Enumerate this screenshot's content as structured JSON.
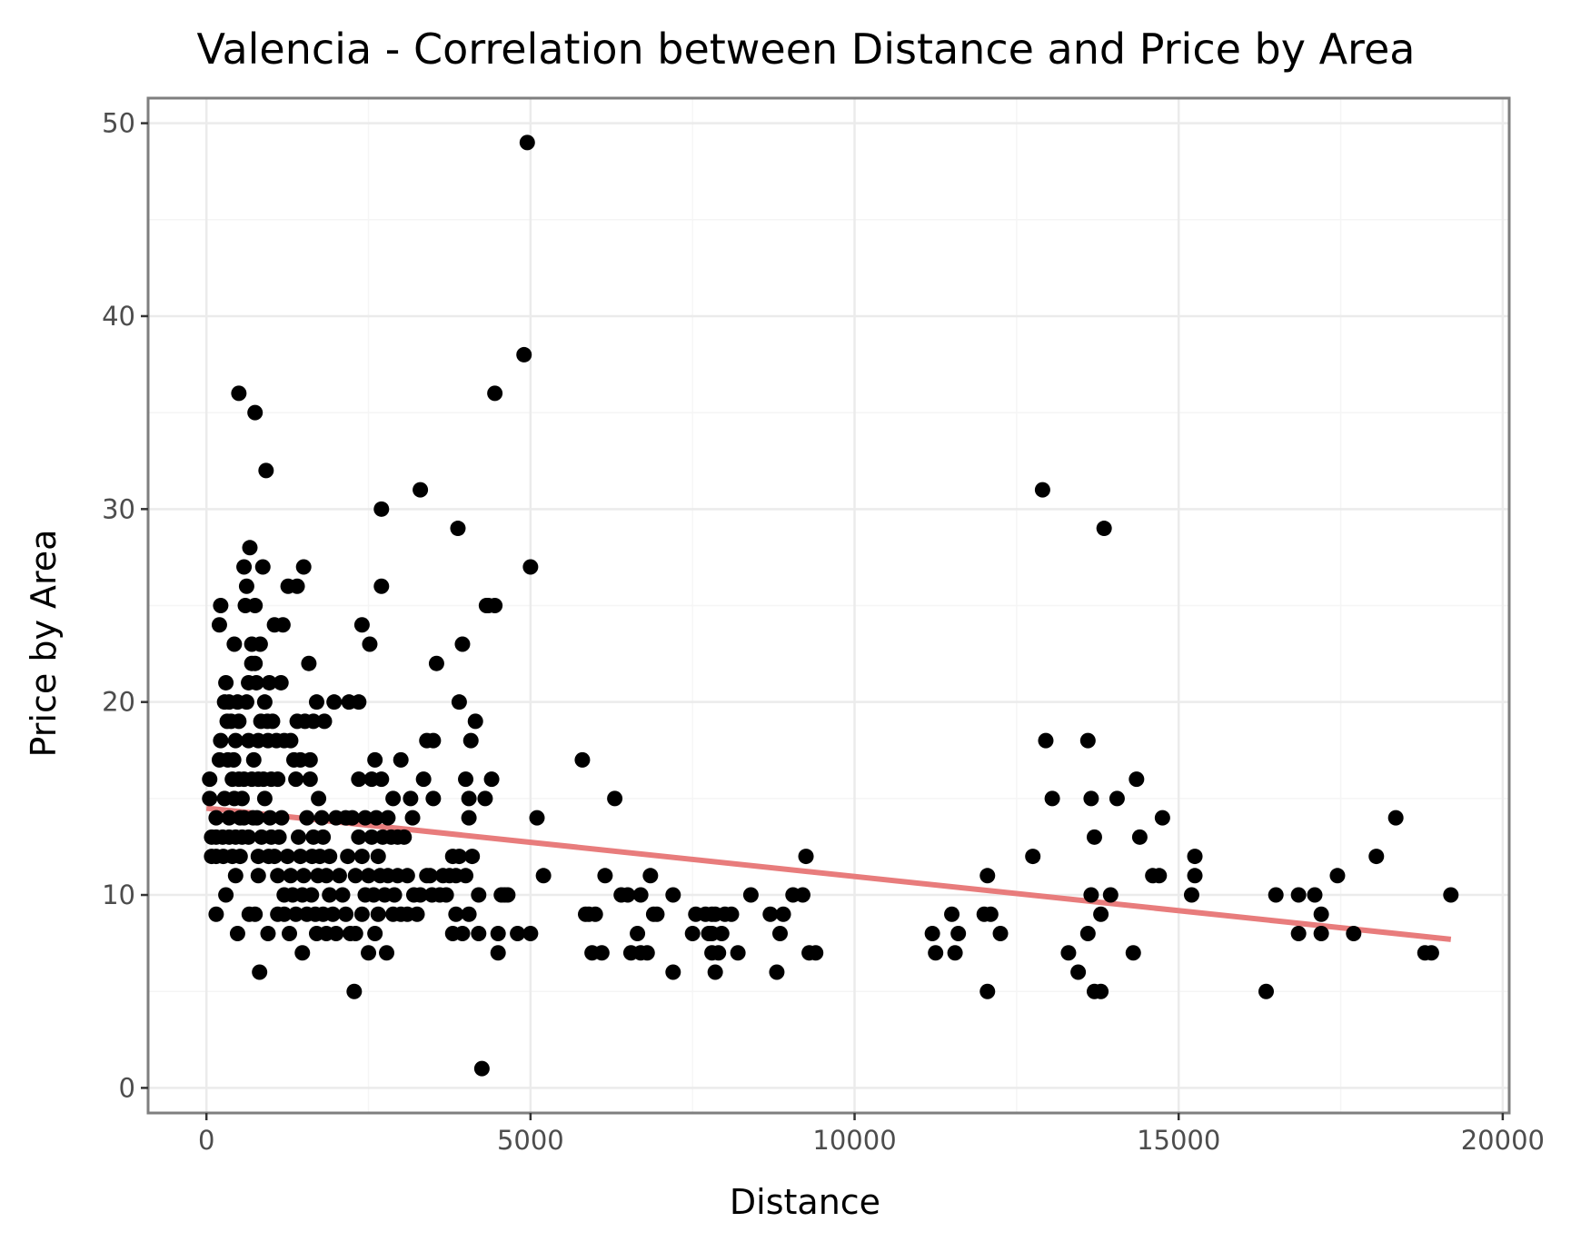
{
  "chart_data": {
    "type": "scatter",
    "title": "Valencia - Correlation between Distance and Price by Area",
    "xlabel": "Distance",
    "ylabel": "Price by Area",
    "xlim": [
      -900,
      20100
    ],
    "ylim": [
      -1.3,
      51.3
    ],
    "x_ticks": [
      0,
      5000,
      10000,
      15000,
      20000
    ],
    "x_tick_labels": [
      "0",
      "5000",
      "10000",
      "15000",
      "20000"
    ],
    "y_ticks": [
      0,
      10,
      20,
      30,
      40,
      50
    ],
    "y_tick_labels": [
      "0",
      "10",
      "20",
      "30",
      "40",
      "50"
    ],
    "grid": true,
    "legend": "none",
    "colors": {
      "points": "#000000",
      "trend": "#e87c7c",
      "grid": "#ebebeb",
      "panel_border": "#7f7f7f"
    },
    "trend_line": {
      "x": [
        0,
        19200
      ],
      "y": [
        14.5,
        7.7
      ]
    },
    "points": [
      [
        50,
        16
      ],
      [
        50,
        15
      ],
      [
        80,
        13
      ],
      [
        80,
        12
      ],
      [
        150,
        14
      ],
      [
        150,
        12
      ],
      [
        150,
        9
      ],
      [
        150,
        13
      ],
      [
        200,
        17
      ],
      [
        200,
        24
      ],
      [
        220,
        18
      ],
      [
        220,
        25
      ],
      [
        250,
        13
      ],
      [
        260,
        12
      ],
      [
        280,
        15
      ],
      [
        280,
        20
      ],
      [
        300,
        10
      ],
      [
        300,
        21
      ],
      [
        320,
        19
      ],
      [
        330,
        17
      ],
      [
        350,
        13
      ],
      [
        350,
        14
      ],
      [
        350,
        20
      ],
      [
        380,
        19
      ],
      [
        400,
        16
      ],
      [
        400,
        12
      ],
      [
        420,
        17
      ],
      [
        430,
        15
      ],
      [
        430,
        23
      ],
      [
        450,
        18
      ],
      [
        450,
        13
      ],
      [
        450,
        11
      ],
      [
        480,
        20
      ],
      [
        480,
        8
      ],
      [
        500,
        19
      ],
      [
        500,
        16
      ],
      [
        500,
        36
      ],
      [
        520,
        14
      ],
      [
        520,
        12
      ],
      [
        550,
        15
      ],
      [
        550,
        13
      ],
      [
        580,
        27
      ],
      [
        580,
        16
      ],
      [
        580,
        14
      ],
      [
        600,
        25
      ],
      [
        620,
        20
      ],
      [
        620,
        26
      ],
      [
        650,
        21
      ],
      [
        650,
        18
      ],
      [
        650,
        13
      ],
      [
        660,
        9
      ],
      [
        670,
        28
      ],
      [
        700,
        23
      ],
      [
        700,
        16
      ],
      [
        700,
        22
      ],
      [
        720,
        14
      ],
      [
        730,
        17
      ],
      [
        750,
        22
      ],
      [
        750,
        9
      ],
      [
        750,
        25
      ],
      [
        750,
        35
      ],
      [
        770,
        21
      ],
      [
        780,
        14
      ],
      [
        800,
        12
      ],
      [
        800,
        18
      ],
      [
        800,
        11
      ],
      [
        800,
        16
      ],
      [
        820,
        6
      ],
      [
        830,
        23
      ],
      [
        840,
        19
      ],
      [
        850,
        13
      ],
      [
        870,
        27
      ],
      [
        880,
        16
      ],
      [
        900,
        15
      ],
      [
        900,
        20
      ],
      [
        920,
        32
      ],
      [
        940,
        19
      ],
      [
        950,
        8
      ],
      [
        950,
        18
      ],
      [
        960,
        12
      ],
      [
        970,
        21
      ],
      [
        980,
        14
      ],
      [
        1000,
        13
      ],
      [
        1000,
        16
      ],
      [
        1020,
        19
      ],
      [
        1050,
        12
      ],
      [
        1050,
        24
      ],
      [
        1080,
        18
      ],
      [
        1100,
        11
      ],
      [
        1100,
        9
      ],
      [
        1100,
        16
      ],
      [
        1120,
        13
      ],
      [
        1150,
        21
      ],
      [
        1160,
        14
      ],
      [
        1180,
        24
      ],
      [
        1200,
        10
      ],
      [
        1200,
        18
      ],
      [
        1200,
        9
      ],
      [
        1250,
        12
      ],
      [
        1260,
        26
      ],
      [
        1280,
        8
      ],
      [
        1300,
        11
      ],
      [
        1300,
        18
      ],
      [
        1330,
        10
      ],
      [
        1350,
        17
      ],
      [
        1380,
        9
      ],
      [
        1380,
        16
      ],
      [
        1400,
        19
      ],
      [
        1400,
        26
      ],
      [
        1420,
        13
      ],
      [
        1450,
        12
      ],
      [
        1450,
        17
      ],
      [
        1480,
        10
      ],
      [
        1480,
        7
      ],
      [
        1500,
        27
      ],
      [
        1500,
        11
      ],
      [
        1520,
        19
      ],
      [
        1550,
        9
      ],
      [
        1550,
        14
      ],
      [
        1580,
        22
      ],
      [
        1600,
        17
      ],
      [
        1600,
        16
      ],
      [
        1620,
        10
      ],
      [
        1630,
        12
      ],
      [
        1650,
        13
      ],
      [
        1650,
        19
      ],
      [
        1680,
        9
      ],
      [
        1700,
        8
      ],
      [
        1700,
        20
      ],
      [
        1720,
        11
      ],
      [
        1730,
        15
      ],
      [
        1750,
        12
      ],
      [
        1780,
        14
      ],
      [
        1800,
        13
      ],
      [
        1800,
        9
      ],
      [
        1820,
        19
      ],
      [
        1850,
        11
      ],
      [
        1850,
        8
      ],
      [
        1900,
        10
      ],
      [
        1900,
        12
      ],
      [
        1950,
        9
      ],
      [
        1970,
        20
      ],
      [
        2000,
        8
      ],
      [
        2000,
        14
      ],
      [
        2050,
        11
      ],
      [
        2100,
        10
      ],
      [
        2150,
        9
      ],
      [
        2150,
        14
      ],
      [
        2180,
        12
      ],
      [
        2200,
        20
      ],
      [
        2220,
        8
      ],
      [
        2250,
        14
      ],
      [
        2280,
        5
      ],
      [
        2300,
        11
      ],
      [
        2300,
        8
      ],
      [
        2350,
        13
      ],
      [
        2350,
        20
      ],
      [
        2350,
        16
      ],
      [
        2400,
        24
      ],
      [
        2400,
        12
      ],
      [
        2400,
        9
      ],
      [
        2450,
        10
      ],
      [
        2450,
        14
      ],
      [
        2500,
        11
      ],
      [
        2500,
        7
      ],
      [
        2520,
        23
      ],
      [
        2550,
        13
      ],
      [
        2550,
        16
      ],
      [
        2580,
        10
      ],
      [
        2600,
        17
      ],
      [
        2600,
        8
      ],
      [
        2620,
        14
      ],
      [
        2650,
        12
      ],
      [
        2650,
        9
      ],
      [
        2680,
        11
      ],
      [
        2700,
        26
      ],
      [
        2700,
        30
      ],
      [
        2700,
        16
      ],
      [
        2720,
        13
      ],
      [
        2750,
        10
      ],
      [
        2780,
        7
      ],
      [
        2800,
        14
      ],
      [
        2800,
        11
      ],
      [
        2850,
        13
      ],
      [
        2880,
        9
      ],
      [
        2880,
        15
      ],
      [
        2900,
        10
      ],
      [
        2950,
        11
      ],
      [
        2950,
        13
      ],
      [
        3000,
        17
      ],
      [
        3000,
        9
      ],
      [
        3050,
        13
      ],
      [
        3100,
        11
      ],
      [
        3100,
        9
      ],
      [
        3150,
        15
      ],
      [
        3180,
        14
      ],
      [
        3200,
        10
      ],
      [
        3250,
        9
      ],
      [
        3300,
        10
      ],
      [
        3300,
        31
      ],
      [
        3350,
        16
      ],
      [
        3400,
        11
      ],
      [
        3400,
        18
      ],
      [
        3450,
        11
      ],
      [
        3480,
        10
      ],
      [
        3500,
        18
      ],
      [
        3500,
        15
      ],
      [
        3550,
        22
      ],
      [
        3600,
        10
      ],
      [
        3650,
        11
      ],
      [
        3700,
        10
      ],
      [
        3750,
        11
      ],
      [
        3800,
        8
      ],
      [
        3800,
        12
      ],
      [
        3850,
        9
      ],
      [
        3850,
        11
      ],
      [
        3880,
        29
      ],
      [
        3900,
        20
      ],
      [
        3900,
        12
      ],
      [
        3950,
        8
      ],
      [
        3950,
        23
      ],
      [
        4000,
        16
      ],
      [
        4000,
        11
      ],
      [
        4050,
        15
      ],
      [
        4050,
        9
      ],
      [
        4050,
        14
      ],
      [
        4080,
        18
      ],
      [
        4100,
        12
      ],
      [
        4150,
        19
      ],
      [
        4200,
        10
      ],
      [
        4200,
        8
      ],
      [
        4250,
        1
      ],
      [
        4300,
        15
      ],
      [
        4320,
        25
      ],
      [
        4350,
        25
      ],
      [
        4400,
        16
      ],
      [
        4450,
        36
      ],
      [
        4450,
        25
      ],
      [
        4500,
        8
      ],
      [
        4500,
        7
      ],
      [
        4550,
        10
      ],
      [
        4600,
        10
      ],
      [
        4650,
        10
      ],
      [
        4800,
        8
      ],
      [
        4900,
        38
      ],
      [
        4950,
        49
      ],
      [
        5000,
        27
      ],
      [
        5000,
        8
      ],
      [
        5100,
        14
      ],
      [
        5200,
        11
      ],
      [
        5800,
        17
      ],
      [
        5850,
        9
      ],
      [
        5900,
        9
      ],
      [
        5950,
        7
      ],
      [
        6000,
        9
      ],
      [
        6100,
        7
      ],
      [
        6150,
        11
      ],
      [
        6300,
        15
      ],
      [
        6400,
        10
      ],
      [
        6500,
        10
      ],
      [
        6550,
        7
      ],
      [
        6650,
        8
      ],
      [
        6700,
        10
      ],
      [
        6700,
        7
      ],
      [
        6800,
        7
      ],
      [
        6850,
        11
      ],
      [
        6900,
        9
      ],
      [
        6950,
        9
      ],
      [
        7200,
        10
      ],
      [
        7200,
        6
      ],
      [
        7500,
        8
      ],
      [
        7550,
        9
      ],
      [
        7700,
        9
      ],
      [
        7750,
        8
      ],
      [
        7800,
        7
      ],
      [
        7800,
        8
      ],
      [
        7800,
        9
      ],
      [
        7850,
        6
      ],
      [
        7850,
        9
      ],
      [
        7900,
        7
      ],
      [
        7950,
        8
      ],
      [
        8000,
        9
      ],
      [
        8100,
        9
      ],
      [
        8200,
        7
      ],
      [
        8400,
        10
      ],
      [
        8700,
        9
      ],
      [
        8800,
        6
      ],
      [
        8850,
        8
      ],
      [
        8900,
        9
      ],
      [
        9050,
        10
      ],
      [
        9200,
        10
      ],
      [
        9250,
        12
      ],
      [
        9300,
        7
      ],
      [
        9400,
        7
      ],
      [
        11200,
        8
      ],
      [
        11250,
        7
      ],
      [
        11500,
        9
      ],
      [
        11550,
        7
      ],
      [
        11600,
        8
      ],
      [
        12000,
        9
      ],
      [
        12050,
        5
      ],
      [
        12050,
        11
      ],
      [
        12100,
        9
      ],
      [
        12250,
        8
      ],
      [
        12750,
        12
      ],
      [
        12900,
        31
      ],
      [
        12950,
        18
      ],
      [
        13050,
        15
      ],
      [
        13300,
        7
      ],
      [
        13450,
        6
      ],
      [
        13600,
        18
      ],
      [
        13600,
        8
      ],
      [
        13650,
        15
      ],
      [
        13650,
        10
      ],
      [
        13700,
        13
      ],
      [
        13700,
        5
      ],
      [
        13800,
        5
      ],
      [
        13800,
        9
      ],
      [
        13850,
        29
      ],
      [
        13950,
        10
      ],
      [
        14050,
        15
      ],
      [
        14300,
        7
      ],
      [
        14350,
        16
      ],
      [
        14400,
        13
      ],
      [
        14600,
        11
      ],
      [
        14700,
        11
      ],
      [
        14750,
        14
      ],
      [
        15200,
        10
      ],
      [
        15250,
        11
      ],
      [
        15250,
        12
      ],
      [
        16350,
        5
      ],
      [
        16500,
        10
      ],
      [
        16850,
        8
      ],
      [
        16850,
        10
      ],
      [
        17100,
        10
      ],
      [
        17200,
        9
      ],
      [
        17200,
        8
      ],
      [
        17450,
        11
      ],
      [
        17700,
        8
      ],
      [
        18050,
        12
      ],
      [
        18350,
        14
      ],
      [
        18800,
        7
      ],
      [
        18900,
        7
      ],
      [
        19200,
        10
      ]
    ]
  }
}
